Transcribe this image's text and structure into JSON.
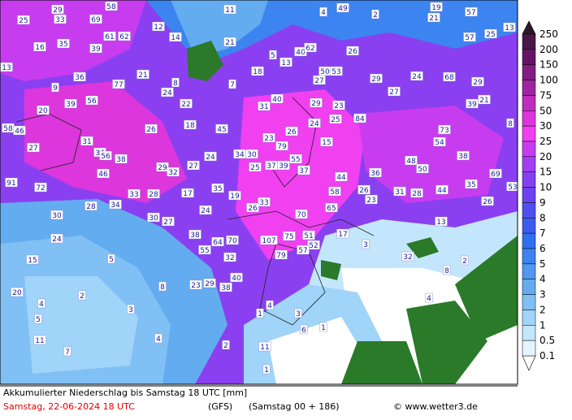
{
  "map": {
    "labels": [
      25,
      29,
      33,
      58,
      69,
      61,
      62,
      12,
      14,
      11,
      4,
      49,
      2,
      19,
      57,
      21,
      16,
      35,
      39,
      21,
      5,
      13,
      40,
      62,
      26,
      57,
      25,
      13,
      36,
      13,
      9,
      21,
      8,
      77,
      24,
      7,
      18,
      50,
      53,
      27,
      29,
      24,
      68,
      29,
      20,
      39,
      56,
      22,
      31,
      40,
      29,
      23,
      27,
      21,
      39,
      58,
      46,
      26,
      18,
      45,
      24,
      25,
      84,
      73,
      8,
      27,
      31,
      23,
      26,
      79,
      15,
      54,
      34,
      56,
      38,
      24,
      34,
      30,
      25,
      37,
      39,
      55,
      37,
      48,
      38,
      46,
      29,
      32,
      27,
      44,
      36,
      50,
      69,
      91,
      72,
      33,
      28,
      17,
      35,
      19,
      58,
      26,
      31,
      28,
      44,
      35,
      53,
      28,
      34,
      24,
      33,
      26,
      65,
      23,
      26,
      30,
      30,
      27,
      70,
      13,
      24,
      38,
      64,
      70,
      107,
      75,
      51,
      52,
      17,
      55,
      57,
      79,
      32,
      15,
      5,
      8,
      23,
      29,
      38,
      40,
      20,
      2,
      4,
      3,
      5,
      11,
      4,
      7,
      2,
      11,
      1,
      3,
      1,
      4,
      6,
      1,
      3,
      32,
      8,
      2,
      4
    ],
    "legend": {
      "levels": [
        250,
        200,
        150,
        100,
        75,
        50,
        30,
        25,
        20,
        15,
        10,
        9,
        8,
        7,
        6,
        5,
        4,
        3,
        2,
        1,
        0.5,
        0.1
      ],
      "colors": [
        "#4a1848",
        "#661466",
        "#821e82",
        "#a024a0",
        "#bf2cbf",
        "#dc36dc",
        "#f040f0",
        "#c83cf0",
        "#a040f0",
        "#8440f0",
        "#6a44f0",
        "#5050f0",
        "#3c5cf0",
        "#3070f0",
        "#3c84f0",
        "#5098f0",
        "#64acf0",
        "#80c0f4",
        "#a0d4f8",
        "#c4e6fc",
        "#e4f4ff"
      ]
    },
    "footer": {
      "title": "Akkumulierter Niederschlag bis Samstag 18 UTC [mm]",
      "date": "Samstag, 22-06-2024  18 UTC",
      "model": "(GFS)",
      "run": "(Samstag 00 + 186)",
      "credit": "© www.wetter3.de"
    }
  }
}
